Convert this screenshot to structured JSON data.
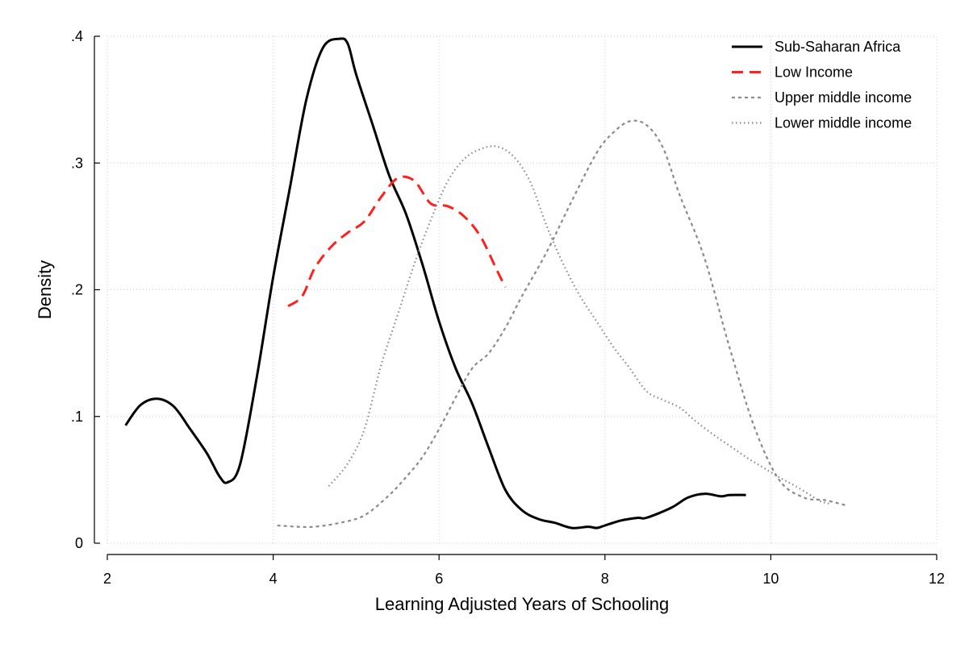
{
  "chart_data": {
    "type": "line",
    "title": "",
    "xlabel": "Learning Adjusted Years of Schooling",
    "ylabel": "Density",
    "xlim": [
      2,
      12
    ],
    "ylim": [
      0,
      0.4
    ],
    "x_ticks": [
      {
        "value": 2,
        "label": "2"
      },
      {
        "value": 4,
        "label": "4"
      },
      {
        "value": 6,
        "label": "6"
      },
      {
        "value": 8,
        "label": "8"
      },
      {
        "value": 10,
        "label": "10"
      },
      {
        "value": 12,
        "label": "12"
      }
    ],
    "y_ticks": [
      {
        "value": 0,
        "label": "0"
      },
      {
        "value": 0.1,
        "label": ".1"
      },
      {
        "value": 0.2,
        "label": ".2"
      },
      {
        "value": 0.3,
        "label": ".3"
      },
      {
        "value": 0.4,
        "label": ".4"
      }
    ],
    "grid": true,
    "legend_position": "top-right",
    "series": [
      {
        "name": "Sub-Saharan Africa",
        "style": "solid",
        "color": "#000000",
        "points": [
          [
            2.22,
            0.093
          ],
          [
            2.4,
            0.109
          ],
          [
            2.6,
            0.114
          ],
          [
            2.8,
            0.108
          ],
          [
            3.0,
            0.09
          ],
          [
            3.2,
            0.071
          ],
          [
            3.35,
            0.053
          ],
          [
            3.45,
            0.048
          ],
          [
            3.6,
            0.062
          ],
          [
            3.8,
            0.13
          ],
          [
            4.0,
            0.21
          ],
          [
            4.2,
            0.28
          ],
          [
            4.4,
            0.35
          ],
          [
            4.6,
            0.391
          ],
          [
            4.8,
            0.398
          ],
          [
            4.9,
            0.394
          ],
          [
            5.0,
            0.37
          ],
          [
            5.2,
            0.33
          ],
          [
            5.4,
            0.29
          ],
          [
            5.6,
            0.26
          ],
          [
            5.8,
            0.22
          ],
          [
            6.0,
            0.175
          ],
          [
            6.2,
            0.138
          ],
          [
            6.4,
            0.11
          ],
          [
            6.6,
            0.075
          ],
          [
            6.8,
            0.042
          ],
          [
            7.0,
            0.026
          ],
          [
            7.2,
            0.019
          ],
          [
            7.4,
            0.016
          ],
          [
            7.6,
            0.012
          ],
          [
            7.8,
            0.013
          ],
          [
            7.9,
            0.012
          ],
          [
            8.0,
            0.014
          ],
          [
            8.2,
            0.018
          ],
          [
            8.4,
            0.02
          ],
          [
            8.5,
            0.02
          ],
          [
            8.8,
            0.028
          ],
          [
            9.0,
            0.036
          ],
          [
            9.2,
            0.039
          ],
          [
            9.4,
            0.037
          ],
          [
            9.5,
            0.038
          ],
          [
            9.7,
            0.038
          ]
        ]
      },
      {
        "name": "Low Income",
        "style": "dashed",
        "color": "#ff2020",
        "points": [
          [
            4.18,
            0.187
          ],
          [
            4.35,
            0.195
          ],
          [
            4.5,
            0.217
          ],
          [
            4.7,
            0.234
          ],
          [
            4.9,
            0.245
          ],
          [
            5.1,
            0.254
          ],
          [
            5.3,
            0.273
          ],
          [
            5.5,
            0.288
          ],
          [
            5.7,
            0.286
          ],
          [
            5.9,
            0.268
          ],
          [
            6.1,
            0.266
          ],
          [
            6.3,
            0.258
          ],
          [
            6.5,
            0.242
          ],
          [
            6.7,
            0.215
          ],
          [
            6.8,
            0.202
          ]
        ]
      },
      {
        "name": "Upper middle income",
        "style": "short-dash",
        "color": "#8a8a8a",
        "points": [
          [
            4.05,
            0.014
          ],
          [
            4.3,
            0.013
          ],
          [
            4.5,
            0.013
          ],
          [
            4.8,
            0.016
          ],
          [
            5.1,
            0.022
          ],
          [
            5.4,
            0.038
          ],
          [
            5.6,
            0.052
          ],
          [
            5.8,
            0.068
          ],
          [
            6.0,
            0.09
          ],
          [
            6.2,
            0.115
          ],
          [
            6.4,
            0.138
          ],
          [
            6.6,
            0.15
          ],
          [
            6.8,
            0.17
          ],
          [
            7.0,
            0.195
          ],
          [
            7.3,
            0.23
          ],
          [
            7.6,
            0.27
          ],
          [
            7.9,
            0.308
          ],
          [
            8.1,
            0.324
          ],
          [
            8.3,
            0.333
          ],
          [
            8.5,
            0.33
          ],
          [
            8.7,
            0.312
          ],
          [
            8.9,
            0.275
          ],
          [
            9.2,
            0.225
          ],
          [
            9.5,
            0.155
          ],
          [
            9.8,
            0.092
          ],
          [
            10.1,
            0.05
          ],
          [
            10.4,
            0.036
          ],
          [
            10.65,
            0.034
          ],
          [
            10.9,
            0.03
          ]
        ]
      },
      {
        "name": "Lower middle income",
        "style": "dotted",
        "color": "#8a8a8a",
        "points": [
          [
            4.67,
            0.045
          ],
          [
            4.9,
            0.063
          ],
          [
            5.1,
            0.09
          ],
          [
            5.3,
            0.14
          ],
          [
            5.5,
            0.18
          ],
          [
            5.7,
            0.22
          ],
          [
            5.9,
            0.255
          ],
          [
            6.1,
            0.285
          ],
          [
            6.3,
            0.303
          ],
          [
            6.5,
            0.311
          ],
          [
            6.7,
            0.313
          ],
          [
            6.9,
            0.305
          ],
          [
            7.1,
            0.285
          ],
          [
            7.3,
            0.25
          ],
          [
            7.5,
            0.22
          ],
          [
            7.7,
            0.195
          ],
          [
            7.9,
            0.175
          ],
          [
            8.1,
            0.155
          ],
          [
            8.3,
            0.138
          ],
          [
            8.5,
            0.12
          ],
          [
            8.7,
            0.113
          ],
          [
            8.9,
            0.107
          ],
          [
            9.1,
            0.096
          ],
          [
            9.3,
            0.086
          ],
          [
            9.5,
            0.077
          ],
          [
            9.7,
            0.068
          ],
          [
            9.9,
            0.06
          ],
          [
            10.1,
            0.052
          ],
          [
            10.3,
            0.045
          ],
          [
            10.5,
            0.037
          ],
          [
            10.6,
            0.033
          ],
          [
            10.72,
            0.031
          ]
        ]
      }
    ]
  }
}
